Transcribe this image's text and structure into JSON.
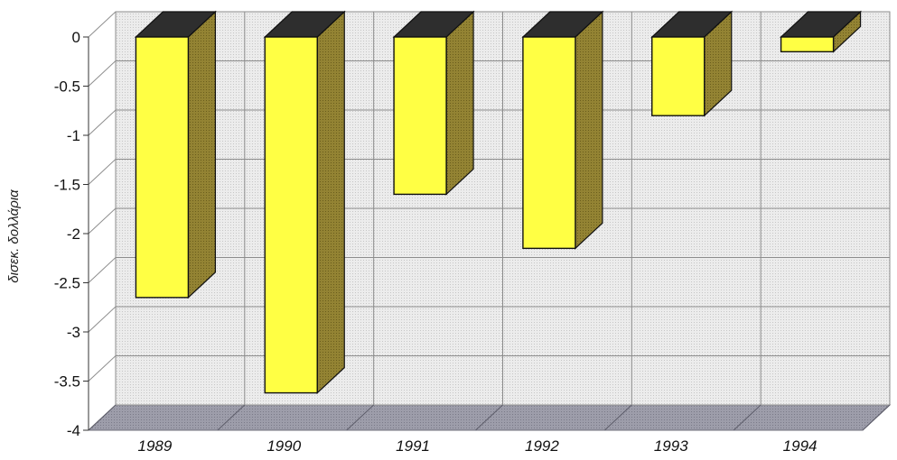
{
  "chart_data": {
    "type": "bar",
    "style": "3d-column",
    "categories": [
      "1989",
      "1990",
      "1991",
      "1992",
      "1993",
      "1994"
    ],
    "values": [
      -2.65,
      -3.62,
      -1.6,
      -2.15,
      -0.8,
      -0.15
    ],
    "ylabel": "δισεκ. δολλάρια",
    "ylim": [
      -4,
      0
    ],
    "yticks": [
      0,
      -0.5,
      -1,
      -1.5,
      -2,
      -2.5,
      -3,
      -3.5,
      -4
    ],
    "grid": true,
    "legend": "none",
    "colors": {
      "bar_front": "#ffff44",
      "bar_side": "#8a7a28",
      "bar_top": "#2e2e2e",
      "wall": "#e4e4e4",
      "floor": "#9a9aa6",
      "grid": "#8c8c8c"
    }
  }
}
